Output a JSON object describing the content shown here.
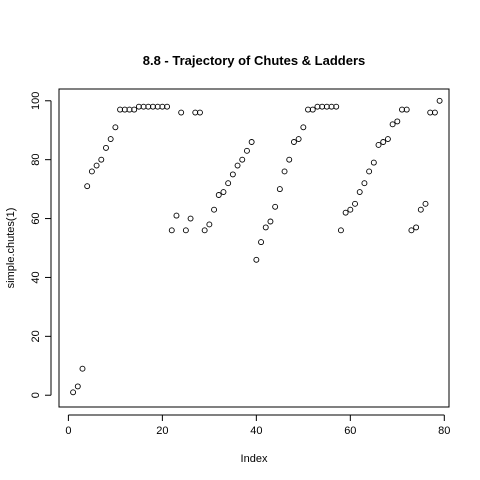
{
  "chart_data": {
    "type": "scatter",
    "title": "8.8 - Trajectory of Chutes & Ladders",
    "xlabel": "Index",
    "ylabel": "simple.chutes(1)",
    "xlim": [
      -2,
      81
    ],
    "ylim": [
      -4,
      104
    ],
    "xticks": [
      0,
      20,
      40,
      60,
      80
    ],
    "yticks": [
      0,
      20,
      40,
      60,
      80,
      100
    ],
    "grid": false,
    "x": [
      1,
      2,
      3,
      4,
      5,
      6,
      7,
      8,
      9,
      10,
      11,
      12,
      13,
      14,
      15,
      16,
      17,
      18,
      19,
      20,
      21,
      22,
      23,
      24,
      25,
      26,
      27,
      28,
      29,
      30,
      31,
      32,
      33,
      34,
      35,
      36,
      37,
      38,
      39,
      40,
      41,
      42,
      43,
      44,
      45,
      46,
      47,
      48,
      49,
      50,
      51,
      52,
      53,
      54,
      55,
      56,
      57,
      58,
      59,
      60,
      61,
      62,
      63,
      64,
      65,
      66,
      67,
      68,
      69,
      70,
      71,
      72,
      73,
      74,
      75,
      76,
      77,
      78,
      79
    ],
    "y": [
      1,
      3,
      9,
      71,
      76,
      78,
      80,
      84,
      87,
      91,
      97,
      97,
      97,
      97,
      98,
      98,
      98,
      98,
      98,
      98,
      98,
      56,
      61,
      96,
      56,
      60,
      96,
      96,
      56,
      58,
      63,
      68,
      69,
      72,
      75,
      78,
      80,
      83,
      86,
      46,
      52,
      57,
      59,
      64,
      70,
      76,
      80,
      86,
      87,
      91,
      97,
      97,
      98,
      98,
      98,
      98,
      98,
      56,
      62,
      63,
      65,
      69,
      72,
      76,
      79,
      85,
      86,
      87,
      92,
      93,
      97,
      97,
      56,
      57,
      63,
      65,
      96,
      96,
      100
    ]
  }
}
